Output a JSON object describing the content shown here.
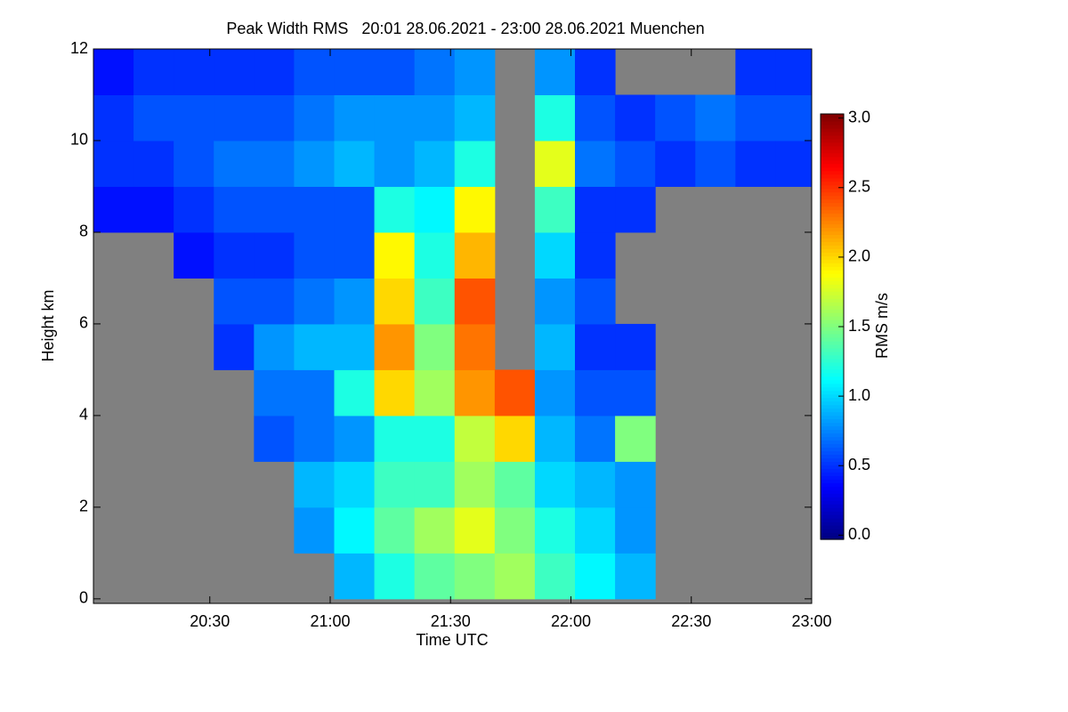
{
  "chart_data": {
    "type": "heatmap",
    "title": "Peak Width RMS   20:01 28.06.2021 - 23:00 28.06.2021 Muenchen",
    "xlabel": "Time UTC",
    "ylabel": "Height km",
    "colorbar_label": "RMS m/s",
    "colormap": "jet",
    "missing_color": "#808080",
    "xlim": [
      20.0167,
      23.0
    ],
    "xticks": [
      {
        "value": 20.5,
        "label": "20:30"
      },
      {
        "value": 21.0,
        "label": "21:00"
      },
      {
        "value": 21.5,
        "label": "21:30"
      },
      {
        "value": 22.0,
        "label": "22:00"
      },
      {
        "value": 22.5,
        "label": "22:30"
      },
      {
        "value": 23.0,
        "label": "23:00"
      }
    ],
    "ylim": [
      -0.1,
      12
    ],
    "yticks": [
      0,
      2,
      4,
      6,
      8,
      10,
      12
    ],
    "zlim": [
      -0.03,
      3.03
    ],
    "zticks": [
      {
        "value": 0,
        "label": "0.0"
      },
      {
        "value": 0.5,
        "label": "0.5"
      },
      {
        "value": 1,
        "label": "1.0"
      },
      {
        "value": 1.5,
        "label": "1.5"
      },
      {
        "value": 2,
        "label": "2.0"
      },
      {
        "value": 2.5,
        "label": "2.5"
      },
      {
        "value": 3,
        "label": "3.0"
      }
    ],
    "x": [
      20.1,
      20.2667,
      20.4333,
      20.6,
      20.7667,
      20.9333,
      21.1,
      21.2667,
      21.4333,
      21.6,
      21.7667,
      21.9333,
      22.1,
      22.2667,
      22.4333,
      22.6,
      22.7667,
      22.9333
    ],
    "y": [
      0.5,
      1.5,
      2.5,
      3.5,
      4.5,
      5.5,
      6.5,
      7.5,
      8.5,
      9.5,
      10.5,
      11.5
    ],
    "z": [
      [
        null,
        null,
        null,
        null,
        null,
        null,
        null,
        null,
        0.4,
        0.5,
        0.5,
        0.4
      ],
      [
        null,
        null,
        null,
        null,
        null,
        null,
        null,
        null,
        0.4,
        0.5,
        0.6,
        0.5
      ],
      [
        null,
        null,
        null,
        null,
        null,
        null,
        null,
        0.4,
        0.5,
        0.6,
        0.6,
        0.5
      ],
      [
        null,
        null,
        null,
        null,
        null,
        0.5,
        0.6,
        0.5,
        0.6,
        0.7,
        0.6,
        0.5
      ],
      [
        null,
        null,
        null,
        0.6,
        0.7,
        0.8,
        0.6,
        0.5,
        0.6,
        0.7,
        0.6,
        0.5
      ],
      [
        null,
        0.8,
        0.9,
        0.7,
        0.7,
        0.9,
        0.7,
        0.6,
        0.6,
        0.8,
        0.7,
        0.6
      ],
      [
        0.9,
        1.1,
        1.0,
        0.8,
        1.2,
        0.9,
        0.8,
        0.6,
        0.6,
        0.9,
        0.8,
        0.6
      ],
      [
        1.2,
        1.4,
        1.3,
        1.2,
        2.0,
        2.2,
        2.0,
        1.9,
        1.2,
        0.8,
        0.8,
        0.6
      ],
      [
        1.4,
        1.6,
        1.3,
        1.2,
        1.6,
        1.5,
        1.3,
        1.2,
        1.1,
        0.9,
        0.8,
        0.7
      ],
      [
        1.5,
        1.8,
        1.6,
        1.7,
        2.2,
        2.3,
        2.4,
        2.1,
        1.9,
        1.2,
        0.9,
        0.8
      ],
      [
        1.6,
        1.5,
        1.4,
        2.0,
        2.4,
        null,
        null,
        null,
        null,
        null,
        null,
        null
      ],
      [
        1.3,
        1.2,
        1.0,
        0.9,
        0.8,
        0.9,
        0.8,
        1.0,
        1.3,
        1.8,
        1.2,
        0.8
      ],
      [
        1.1,
        1.0,
        0.9,
        0.7,
        0.6,
        0.5,
        0.6,
        0.5,
        0.5,
        0.7,
        0.6,
        0.5
      ],
      [
        0.9,
        0.8,
        0.8,
        1.5,
        0.6,
        0.5,
        null,
        null,
        0.5,
        0.6,
        0.5,
        null
      ],
      [
        null,
        null,
        null,
        null,
        null,
        null,
        null,
        null,
        null,
        0.5,
        0.6,
        null
      ],
      [
        null,
        null,
        null,
        null,
        null,
        null,
        null,
        null,
        null,
        0.6,
        0.7,
        null
      ],
      [
        null,
        null,
        null,
        null,
        null,
        null,
        null,
        null,
        null,
        0.5,
        0.6,
        0.5
      ],
      [
        null,
        null,
        null,
        null,
        null,
        null,
        null,
        null,
        null,
        0.5,
        0.6,
        0.5
      ]
    ]
  }
}
